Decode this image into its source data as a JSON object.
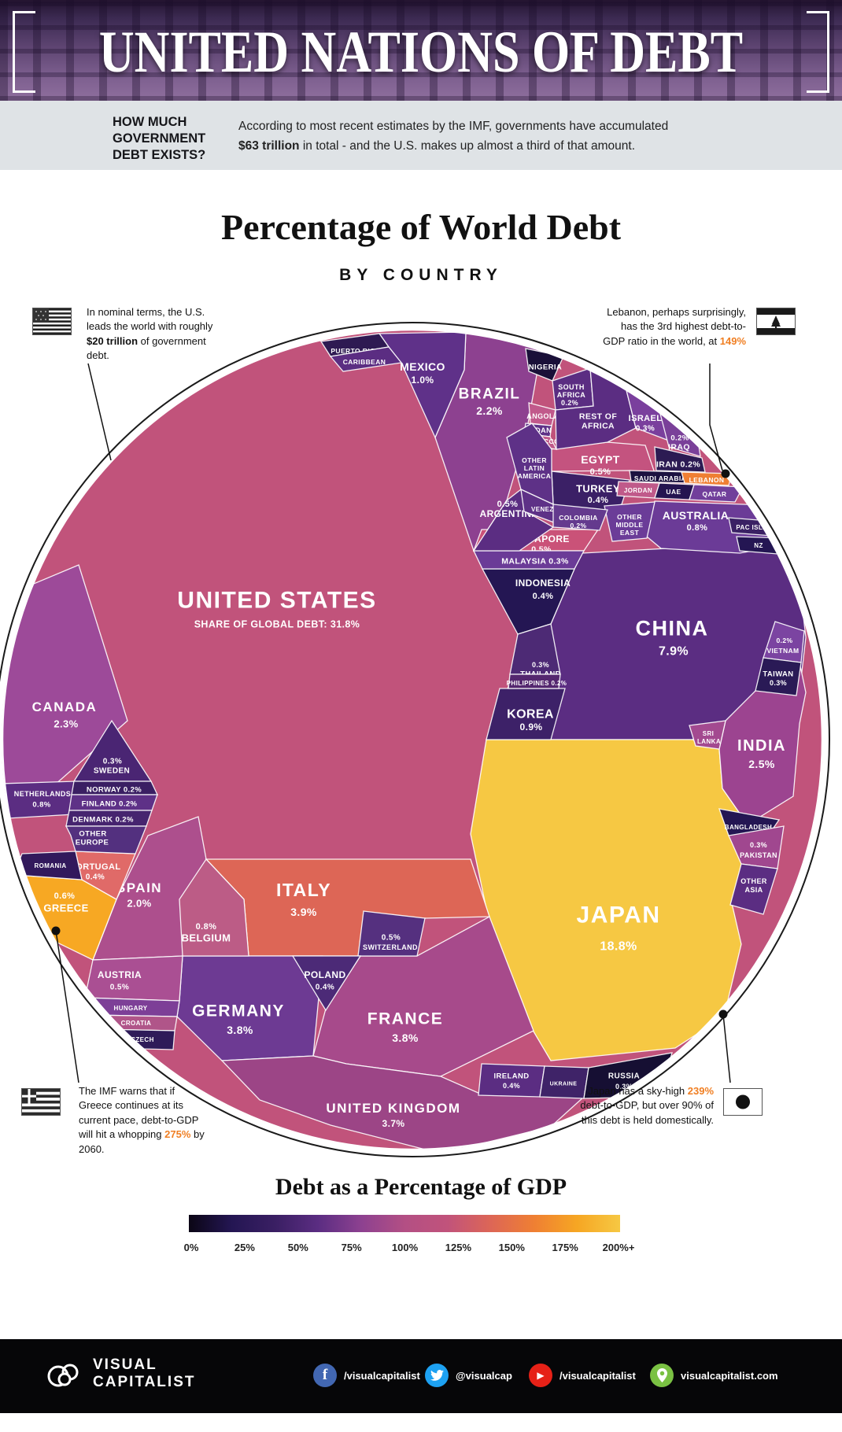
{
  "header": {
    "title": "UNITED NATIONS OF DEBT"
  },
  "intro": {
    "question": "HOW MUCH GOVERNMENT DEBT EXISTS?",
    "body_pre": "According to most recent estimates by the IMF, governments have accumulated ",
    "body_bold": "$63 trillion",
    "body_post": " in total - and the U.S. makes up almost a third of that amount."
  },
  "chart": {
    "title": "Percentage of World Debt",
    "subtitle": "BY COUNTRY",
    "cells": [
      {
        "id": "us",
        "lines": [
          "UNITED STATES",
          "SHARE OF GLOBAL DEBT: 31.8%"
        ],
        "color": "#c1537b"
      },
      {
        "id": "china",
        "lines": [
          "CHINA",
          "7.9%"
        ],
        "color": "#5b2d82"
      },
      {
        "id": "japan",
        "lines": [
          "JAPAN",
          "18.8%"
        ],
        "color": "#f6c843"
      },
      {
        "id": "canada",
        "lines": [
          "CANADA",
          "2.3%"
        ],
        "color": "#9d4a99"
      },
      {
        "id": "brazil",
        "lines": [
          "BRAZIL",
          "2.2%"
        ],
        "color": "#8d4190"
      },
      {
        "id": "mexico",
        "lines": [
          "MEXICO",
          "1.0%"
        ],
        "color": "#5f3189"
      },
      {
        "id": "spain",
        "lines": [
          "SPAIN",
          "2.0%"
        ],
        "color": "#ad4f8d"
      },
      {
        "id": "italy",
        "lines": [
          "ITALY",
          "3.9%"
        ],
        "color": "#dd6656"
      },
      {
        "id": "germany",
        "lines": [
          "GERMANY",
          "3.8%"
        ],
        "color": "#6d3a93"
      },
      {
        "id": "france",
        "lines": [
          "FRANCE",
          "3.8%"
        ],
        "color": "#a74a8b"
      },
      {
        "id": "uk",
        "lines": [
          "UNITED KINGDOM",
          "3.7%"
        ],
        "color": "#9c4586"
      },
      {
        "id": "india",
        "lines": [
          "INDIA",
          "2.5%"
        ],
        "color": "#9c4490"
      },
      {
        "id": "australia",
        "lines": [
          "AUSTRALIA",
          "0.8%"
        ],
        "color": "#6b3b97"
      },
      {
        "id": "korea",
        "lines": [
          "KOREA",
          "0.9%"
        ],
        "color": "#3d2168"
      },
      {
        "id": "indonesia",
        "lines": [
          "INDONESIA",
          "0.4%"
        ],
        "color": "#241653"
      },
      {
        "id": "singapore",
        "lines": [
          "SINGAPORE",
          "0.5%"
        ],
        "color": "#ca5278"
      },
      {
        "id": "malaysia",
        "lines": [
          "MALAYSIA  0.3%"
        ],
        "color": "#6b3b97"
      },
      {
        "id": "thailand",
        "lines": [
          "0.3%",
          "THAILAND"
        ],
        "color": "#4d2a75"
      },
      {
        "id": "philippines",
        "lines": [
          "PHILIPPINES  0.2%"
        ],
        "color": "#54276f"
      },
      {
        "id": "egypt",
        "lines": [
          "EGYPT",
          "0.5%"
        ],
        "color": "#c4537f"
      },
      {
        "id": "turkey",
        "lines": [
          "TURKEY",
          "0.4%"
        ],
        "color": "#3b2066"
      },
      {
        "id": "argentina",
        "lines": [
          "0.5%",
          "ARGENTINA"
        ],
        "color": "#5b2d82"
      },
      {
        "id": "greece",
        "lines": [
          "0.6%",
          "GREECE"
        ],
        "color": "#f7a823"
      },
      {
        "id": "belgium",
        "lines": [
          "0.8%",
          "BELGIUM"
        ],
        "color": "#bc5c86"
      },
      {
        "id": "switzerland",
        "lines": [
          "0.5%",
          "SWITZERLAND"
        ],
        "color": "#55307f"
      },
      {
        "id": "poland",
        "lines": [
          "POLAND",
          "0.4%"
        ],
        "color": "#4c2a77"
      },
      {
        "id": "austria",
        "lines": [
          "AUSTRIA",
          "0.5%"
        ],
        "color": "#aa4f93"
      },
      {
        "id": "portugal",
        "lines": [
          "PORTUGAL",
          "0.4%"
        ],
        "color": "#e06a68"
      },
      {
        "id": "netherlands",
        "lines": [
          "NETHERLANDS",
          "0.8%"
        ],
        "color": "#5b2d82"
      },
      {
        "id": "sweden",
        "lines": [
          "0.3%",
          "SWEDEN"
        ],
        "color": "#4a2573"
      },
      {
        "id": "norway",
        "lines": [
          "NORWAY  0.2%"
        ],
        "color": "#3a1f63"
      },
      {
        "id": "finland",
        "lines": [
          "FINLAND  0.2%"
        ],
        "color": "#5e3187"
      },
      {
        "id": "denmark",
        "lines": [
          "DENMARK  0.2%"
        ],
        "color": "#46246f"
      },
      {
        "id": "other-europe",
        "lines": [
          "OTHER",
          "EUROPE"
        ],
        "color": "#53307f"
      },
      {
        "id": "romania",
        "lines": [
          "ROMANIA"
        ],
        "color": "#32195c"
      },
      {
        "id": "puerto-rico",
        "lines": [
          "PUERTO RICO"
        ],
        "color": "#2e1a52"
      },
      {
        "id": "caribbean",
        "lines": [
          "CARIBBEAN"
        ],
        "color": "#5b2d82"
      },
      {
        "id": "nigeria",
        "lines": [
          "NIGERIA"
        ],
        "color": "#1a1038"
      },
      {
        "id": "south-africa",
        "lines": [
          "SOUTH",
          "AFRICA",
          "0.2%"
        ],
        "color": "#5b2d82"
      },
      {
        "id": "angola",
        "lines": [
          "ANGOLA"
        ],
        "color": "#c1598b"
      },
      {
        "id": "sudan",
        "lines": [
          "SUDAN"
        ],
        "color": "#5e3187"
      },
      {
        "id": "morocco",
        "lines": [
          "MOROCCO"
        ],
        "color": "#c05a8a"
      },
      {
        "id": "rest-of-africa",
        "lines": [
          "REST OF",
          "AFRICA"
        ],
        "color": "#5b2d82"
      },
      {
        "id": "israel",
        "lines": [
          "ISRAEL",
          "0.3%"
        ],
        "color": "#7a3f9d"
      },
      {
        "id": "iraq",
        "lines": [
          "0.2%",
          "IRAQ"
        ],
        "color": "#7a4099"
      },
      {
        "id": "iran",
        "lines": [
          "IRAN  0.2%"
        ],
        "color": "#2c1b53"
      },
      {
        "id": "saudi-arabia",
        "lines": [
          "SAUDI ARABIA"
        ],
        "color": "#1c1240"
      },
      {
        "id": "lebanon",
        "lines": [
          "LEBANON"
        ],
        "color": "#ef7f33"
      },
      {
        "id": "jordan",
        "lines": [
          "JORDAN"
        ],
        "color": "#c05a8a"
      },
      {
        "id": "uae",
        "lines": [
          "UAE"
        ],
        "color": "#241450"
      },
      {
        "id": "qatar",
        "lines": [
          "QATAR"
        ],
        "color": "#713f9b"
      },
      {
        "id": "other-middle-east",
        "lines": [
          "OTHER",
          "MIDDLE",
          "EAST"
        ],
        "color": "#6b3c98"
      },
      {
        "id": "pac-isles",
        "lines": [
          "PAC ISLES"
        ],
        "color": "#3a2164"
      },
      {
        "id": "nz",
        "lines": [
          "NZ"
        ],
        "color": "#241653"
      },
      {
        "id": "other-latin-america",
        "lines": [
          "OTHER",
          "LATIN",
          "AMERICA"
        ],
        "color": "#5e3187"
      },
      {
        "id": "venezuela",
        "lines": [
          "VENEZUELA"
        ],
        "color": "#5e3187"
      },
      {
        "id": "colombia",
        "lines": [
          "COLOMBIA",
          "0.2%"
        ],
        "color": "#643a8e"
      },
      {
        "id": "vietnam",
        "lines": [
          "0.2%",
          "VIETNAM"
        ],
        "color": "#7b44a1"
      },
      {
        "id": "taiwan",
        "lines": [
          "TAIWAN",
          "0.3%"
        ],
        "color": "#2a1a56"
      },
      {
        "id": "sri-lanka",
        "lines": [
          "SRI",
          "LANKA"
        ],
        "color": "#a34a90"
      },
      {
        "id": "bangladesh",
        "lines": [
          "BANGLADESH"
        ],
        "color": "#241653"
      },
      {
        "id": "pakistan",
        "lines": [
          "0.3%",
          "PAKISTAN"
        ],
        "color": "#a0478f"
      },
      {
        "id": "other-asia",
        "lines": [
          "OTHER",
          "ASIA"
        ],
        "color": "#5b2d82"
      },
      {
        "id": "hungary",
        "lines": [
          "HUNGARY"
        ],
        "color": "#7d3f97"
      },
      {
        "id": "croatia",
        "lines": [
          "CROATIA"
        ],
        "color": "#b05589"
      },
      {
        "id": "czech",
        "lines": [
          "CZECH"
        ],
        "color": "#2f1b59"
      },
      {
        "id": "ireland",
        "lines": [
          "IRELAND",
          "0.4%"
        ],
        "color": "#5b2d82"
      },
      {
        "id": "ukraine",
        "lines": [
          "UKRAINE"
        ],
        "color": "#3f2368"
      },
      {
        "id": "russia",
        "lines": [
          "RUSSIA",
          "0.3%"
        ],
        "color": "#160f33"
      }
    ]
  },
  "annotations": {
    "us": {
      "pre": "In nominal terms, the U.S. leads the world with roughly ",
      "bold": "$20 trillion",
      "post": " of government debt."
    },
    "lebanon": {
      "pre": "Lebanon, perhaps surprisingly, has the 3rd highest debt-to-GDP ratio in the world, at ",
      "hl": "149%",
      "post": ""
    },
    "greece": {
      "pre": "The IMF warns that if Greece continues at its current pace, debt-to-GDP will hit a whopping ",
      "hl": "275%",
      "post": " by 2060."
    },
    "japan": {
      "pre": "Japan has a sky-high ",
      "hl": "239%",
      "post": " debt-to-GDP, but over 90% of this debt is held domestically."
    }
  },
  "legend": {
    "title": "Debt as a Percentage of GDP",
    "ticks": [
      "0%",
      "25%",
      "50%",
      "75%",
      "100%",
      "125%",
      "150%",
      "175%",
      "200%+"
    ],
    "gradient": [
      "#0b0615",
      "#241653",
      "#3a1f63",
      "#5b2d82",
      "#8d4190",
      "#b34f84",
      "#c1537b",
      "#dd6656",
      "#ef7f33",
      "#f6a623",
      "#f6c843"
    ]
  },
  "footer": {
    "brand_line1": "VISUAL",
    "brand_line2": "CAPITALIST",
    "socials": [
      {
        "type": "facebook",
        "label": "/visualcapitalist"
      },
      {
        "type": "twitter",
        "label": "@visualcap"
      },
      {
        "type": "youtube",
        "label": "/visualcapitalist"
      },
      {
        "type": "pin",
        "label": "visualcapitalist.com"
      }
    ]
  },
  "chart_data": {
    "type": "treemap",
    "variant": "circular-voronoi",
    "title": "Percentage of World Debt",
    "subtitle": "BY COUNTRY",
    "unit": "% share of world government debt",
    "color_scale": {
      "label": "Debt as a Percentage of GDP",
      "range": [
        "0%",
        "200%+"
      ],
      "ticks": [
        0,
        25,
        50,
        75,
        100,
        125,
        150,
        175,
        200
      ]
    },
    "items": [
      [
        "United States",
        31.8
      ],
      [
        "Japan",
        18.8
      ],
      [
        "China",
        7.9
      ],
      [
        "Italy",
        3.9
      ],
      [
        "Germany",
        3.8
      ],
      [
        "France",
        3.8
      ],
      [
        "United Kingdom",
        3.7
      ],
      [
        "India",
        2.5
      ],
      [
        "Canada",
        2.3
      ],
      [
        "Brazil",
        2.2
      ],
      [
        "Spain",
        2.0
      ],
      [
        "Mexico",
        1.0
      ],
      [
        "Korea",
        0.9
      ],
      [
        "Netherlands",
        0.8
      ],
      [
        "Belgium",
        0.8
      ],
      [
        "Australia",
        0.8
      ],
      [
        "Greece",
        0.6
      ],
      [
        "Egypt",
        0.5
      ],
      [
        "Singapore",
        0.5
      ],
      [
        "Argentina",
        0.5
      ],
      [
        "Austria",
        0.5
      ],
      [
        "Switzerland",
        0.5
      ],
      [
        "Turkey",
        0.4
      ],
      [
        "Poland",
        0.4
      ],
      [
        "Portugal",
        0.4
      ],
      [
        "Indonesia",
        0.4
      ],
      [
        "Ireland",
        0.4
      ],
      [
        "Israel",
        0.3
      ],
      [
        "Sweden",
        0.3
      ],
      [
        "Malaysia",
        0.3
      ],
      [
        "Thailand",
        0.3
      ],
      [
        "Taiwan",
        0.3
      ],
      [
        "Pakistan",
        0.3
      ],
      [
        "Russia",
        0.3
      ],
      [
        "Denmark",
        0.2
      ],
      [
        "Norway",
        0.2
      ],
      [
        "Finland",
        0.2
      ],
      [
        "South Africa",
        0.2
      ],
      [
        "Iraq",
        0.2
      ],
      [
        "Iran",
        0.2
      ],
      [
        "Colombia",
        0.2
      ],
      [
        "Philippines",
        0.2
      ],
      [
        "Vietnam",
        0.2
      ],
      [
        "Puerto Rico",
        null
      ],
      [
        "Caribbean",
        null
      ],
      [
        "Nigeria",
        null
      ],
      [
        "Angola",
        null
      ],
      [
        "Sudan",
        null
      ],
      [
        "Morocco",
        null
      ],
      [
        "Rest of Africa",
        null
      ],
      [
        "Saudi Arabia",
        null
      ],
      [
        "Lebanon",
        null
      ],
      [
        "Jordan",
        null
      ],
      [
        "UAE",
        null
      ],
      [
        "Qatar",
        null
      ],
      [
        "Other Middle East",
        null
      ],
      [
        "Pac Isles",
        null
      ],
      [
        "NZ",
        null
      ],
      [
        "Other Latin America",
        null
      ],
      [
        "Venezuela",
        null
      ],
      [
        "Sri Lanka",
        null
      ],
      [
        "Bangladesh",
        null
      ],
      [
        "Other Asia",
        null
      ],
      [
        "Other Europe",
        null
      ],
      [
        "Romania",
        null
      ],
      [
        "Hungary",
        null
      ],
      [
        "Croatia",
        null
      ],
      [
        "Czech",
        null
      ],
      [
        "Ukraine",
        null
      ]
    ],
    "annotations": [
      "In nominal terms, the U.S. leads the world with roughly $20 trillion of government debt.",
      "Lebanon, perhaps surprisingly, has the 3rd highest debt-to-GDP ratio in the world, at 149%",
      "The IMF warns that if Greece continues at its current pace, debt-to-GDP will hit a whopping 275% by 2060.",
      "Japan has a sky-high 239% debt-to-GDP, but over 90% of this debt is held domestically."
    ]
  }
}
